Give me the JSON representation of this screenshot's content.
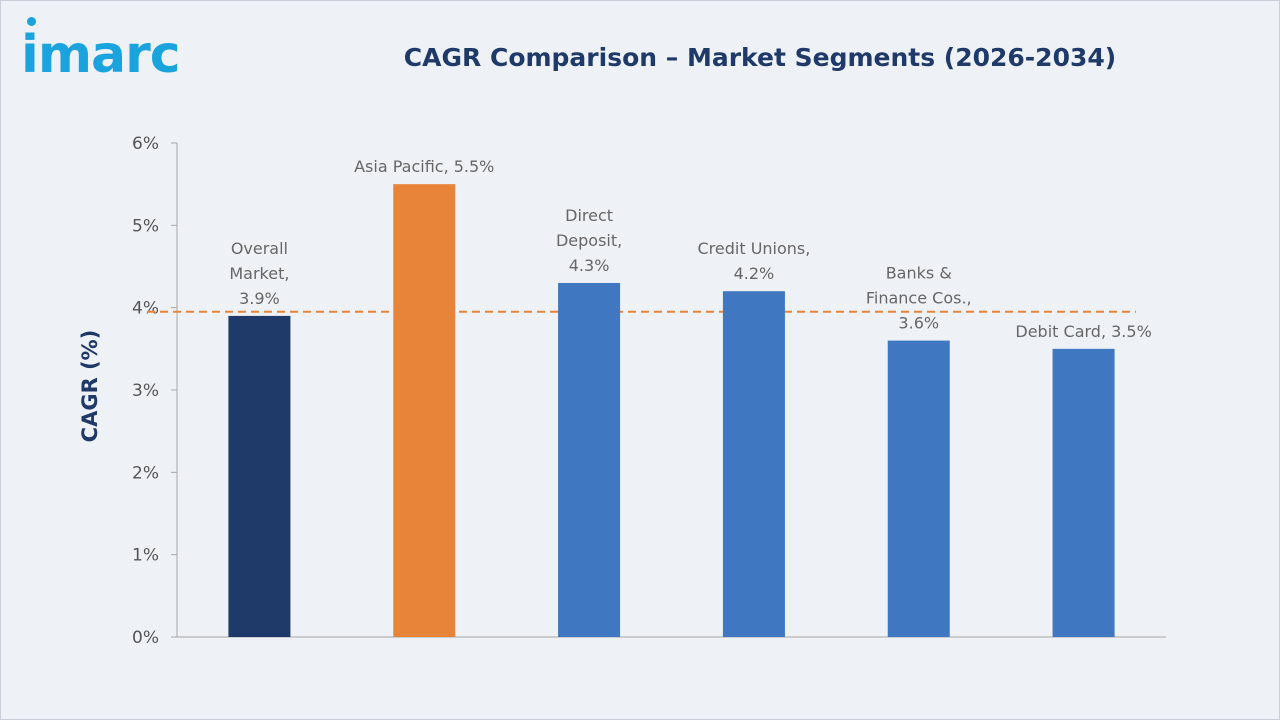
{
  "logo": {
    "text": "imarc",
    "color": "#1aa3dc"
  },
  "chart_data": {
    "type": "bar",
    "title": "CAGR Comparison – Market Segments (2026-2034)",
    "ylabel": "CAGR (%)",
    "xlabel": "",
    "ylim": [
      0,
      6
    ],
    "yticks": [
      "0%",
      "1%",
      "2%",
      "3%",
      "4%",
      "5%",
      "6%"
    ],
    "grid": false,
    "reference_line": {
      "value": 3.95,
      "style": "dashed",
      "color": "#e8833a"
    },
    "bars": [
      {
        "label_lines": [
          "Overall",
          "Market,",
          "3.9%"
        ],
        "value": 3.9,
        "color": "#1f3a68"
      },
      {
        "label_lines": [
          "Asia Pacific, 5.5%"
        ],
        "value": 5.5,
        "color": "#e8833a"
      },
      {
        "label_lines": [
          "Direct",
          "Deposit,",
          "4.3%"
        ],
        "value": 4.3,
        "color": "#3f77c0"
      },
      {
        "label_lines": [
          "Credit Unions,",
          "4.2%"
        ],
        "value": 4.2,
        "color": "#3f77c0"
      },
      {
        "label_lines": [
          "Banks &",
          "Finance Cos.,",
          "3.6%"
        ],
        "value": 3.6,
        "color": "#3f77c0"
      },
      {
        "label_lines": [
          "Debit Card, 3.5%"
        ],
        "value": 3.5,
        "color": "#3f77c0"
      }
    ]
  }
}
